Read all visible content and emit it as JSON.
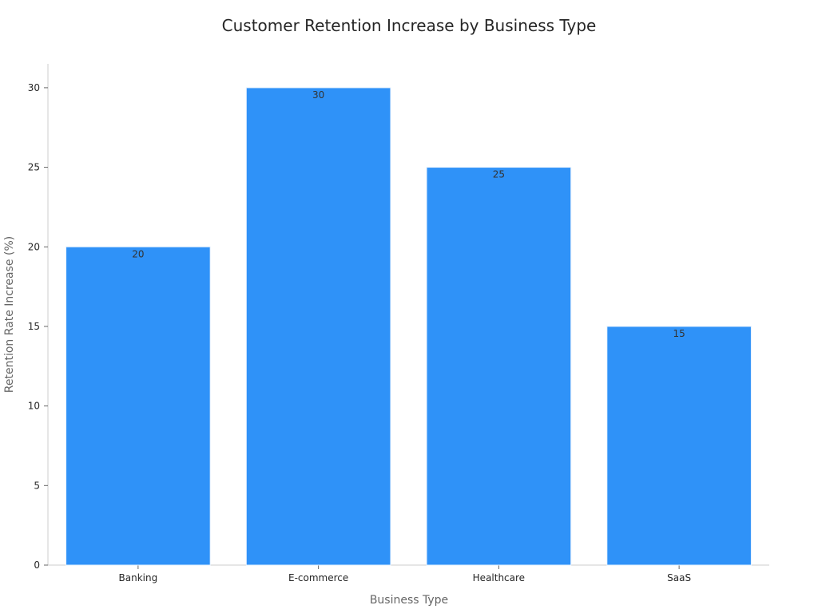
{
  "chart_data": {
    "type": "bar",
    "title": "Customer Retention Increase by Business Type",
    "xlabel": "Business Type",
    "ylabel": "Retention Rate Increase (%)",
    "categories": [
      "Banking",
      "E-commerce",
      "Healthcare",
      "SaaS"
    ],
    "values": [
      20,
      30,
      25,
      15
    ],
    "data_labels": [
      "20",
      "30",
      "25",
      "15"
    ],
    "ylim": [
      0,
      31.5
    ],
    "yticks": [
      0,
      5,
      10,
      15,
      20,
      25,
      30
    ],
    "bar_color": "#2f92f8",
    "grid": false,
    "legend": "none"
  }
}
